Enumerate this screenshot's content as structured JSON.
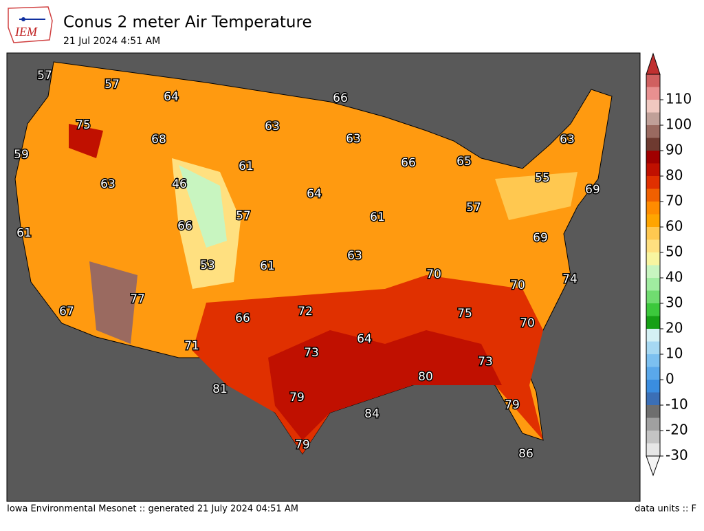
{
  "header": {
    "logo_text": "IEM",
    "title": "Conus 2 meter Air Temperature",
    "subtitle": "21 Jul 2024 4:51 AM"
  },
  "map": {
    "labels": [
      57,
      57,
      64,
      66,
      75,
      63,
      63,
      68,
      59,
      61,
      66,
      65,
      63,
      46,
      63,
      64,
      55,
      69,
      57,
      57,
      61,
      66,
      61,
      69,
      53,
      61,
      63,
      70,
      70,
      74,
      77,
      67,
      72,
      66,
      75,
      70,
      71,
      73,
      64,
      73,
      80,
      81,
      79,
      84,
      79,
      79,
      86
    ]
  },
  "colorbar": {
    "min": -30,
    "max": 120,
    "ticks": [
      -30,
      -20,
      -10,
      0,
      10,
      20,
      30,
      40,
      50,
      60,
      70,
      80,
      90,
      100,
      110
    ],
    "colors": [
      "#e6e6e6",
      "#c4c4c4",
      "#a0a0a0",
      "#6e6e6e",
      "#3b6fb6",
      "#3a8de0",
      "#5aa8ea",
      "#7cc0f0",
      "#a6d8f2",
      "#d4f0f4",
      "#16a016",
      "#3cc83c",
      "#70dc70",
      "#a0eca0",
      "#c8f5c0",
      "#f8f5a0",
      "#ffe080",
      "#ffc850",
      "#ffa500",
      "#ff8c00",
      "#f06000",
      "#e03000",
      "#c01000",
      "#a00000",
      "#6e3a30",
      "#9a6a60",
      "#c0a098",
      "#f0c8c0",
      "#e89090",
      "#d06060"
    ],
    "over_color": "#c03030",
    "under_color": "#f4f4f4"
  },
  "footer": {
    "left": "Iowa Environmental Mesonet :: generated 21 July 2024 04:51 AM",
    "right": "data units :: F"
  }
}
